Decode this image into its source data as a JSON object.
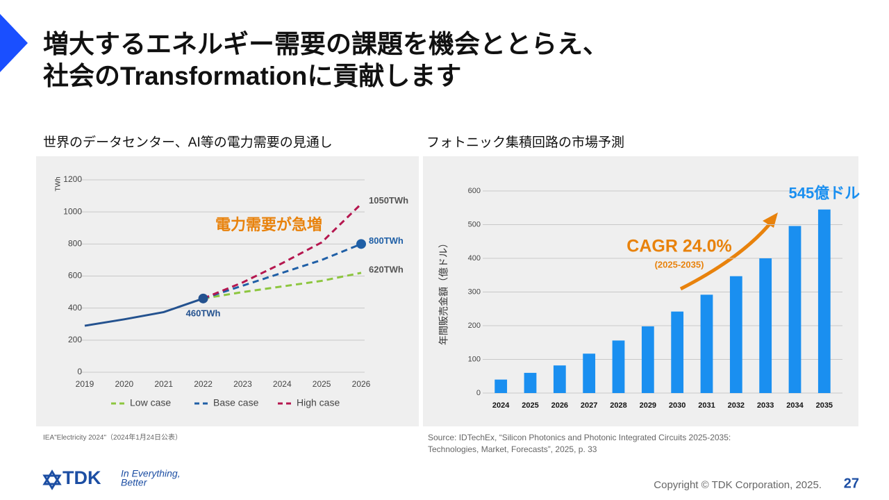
{
  "header": {
    "title_lines": [
      "増大するエネルギー需要の課題を機会ととらえ、",
      "社会のTransformationに貢献します"
    ]
  },
  "chart_data": [
    {
      "type": "line",
      "title": "世界のデータセンター、AI等の電力需要の見通し",
      "y_label": "TWh",
      "categories": [
        "2019",
        "2020",
        "2021",
        "2022",
        "2023",
        "2024",
        "2025",
        "2026"
      ],
      "series": [
        {
          "color": "#24528f",
          "line_style": "solid",
          "values": [
            290,
            330,
            375,
            460,
            null,
            null,
            null,
            null
          ],
          "value_labels": [
            null,
            null,
            null,
            "460TWh",
            null,
            null,
            null,
            null
          ]
        },
        {
          "name": "Low case",
          "color": "#8dc63f",
          "line_style": "dashed",
          "values": [
            null,
            null,
            null,
            460,
            500,
            535,
            570,
            620
          ],
          "value_labels": [
            null,
            null,
            null,
            null,
            null,
            null,
            null,
            "620TWh"
          ]
        },
        {
          "name": "Base case",
          "color": "#1f5fa6",
          "line_style": "dashed",
          "values": [
            null,
            null,
            null,
            460,
            540,
            620,
            700,
            800
          ],
          "value_labels": [
            null,
            null,
            null,
            null,
            null,
            null,
            null,
            "800TWh"
          ]
        },
        {
          "name": "High case",
          "color": "#b5174f",
          "line_style": "dashed",
          "values": [
            null,
            null,
            null,
            460,
            560,
            680,
            810,
            1050
          ],
          "value_labels": [
            null,
            null,
            null,
            null,
            null,
            null,
            null,
            "1050TWh"
          ]
        }
      ],
      "annotations": [
        "電力需要が急増"
      ],
      "ylim": [
        0,
        1200
      ],
      "yticks": [
        0,
        200,
        400,
        600,
        800,
        1000,
        1200
      ],
      "grid": true,
      "legend": "bottom",
      "source": "IEA\"Electricity 2024\"（2024年1月24日公表）"
    },
    {
      "type": "bar",
      "title": "フォトニック集積回路の市場予測",
      "y_label": "年間販売金額（億ドル）",
      "categories": [
        "2024",
        "2025",
        "2026",
        "2027",
        "2028",
        "2029",
        "2030",
        "2031",
        "2032",
        "2033",
        "2034",
        "2035"
      ],
      "values": [
        40,
        60,
        82,
        117,
        156,
        198,
        242,
        292,
        347,
        400,
        496,
        545
      ],
      "value_labels": [
        null,
        null,
        null,
        null,
        null,
        null,
        null,
        null,
        null,
        null,
        null,
        "545億ドル"
      ],
      "color": "#1a8ff0",
      "annotations": [
        "CAGR 24.0%",
        "(2025-2035)"
      ],
      "ylim": [
        0,
        600
      ],
      "yticks": [
        0,
        100,
        200,
        300,
        400,
        500,
        600
      ],
      "grid": true,
      "source": "Source: IDTechEx, “Silicon Photonics and Photonic Integrated Circuits 2025-2035: Technologies, Market, Forecasts”, 2025, p. 33"
    }
  ],
  "footer": {
    "logo": "TDK",
    "tagline_lines": [
      "In Everything,",
      "Better"
    ],
    "copyright": "Copyright © TDK Corporation, 2025.",
    "page_number": "27"
  }
}
